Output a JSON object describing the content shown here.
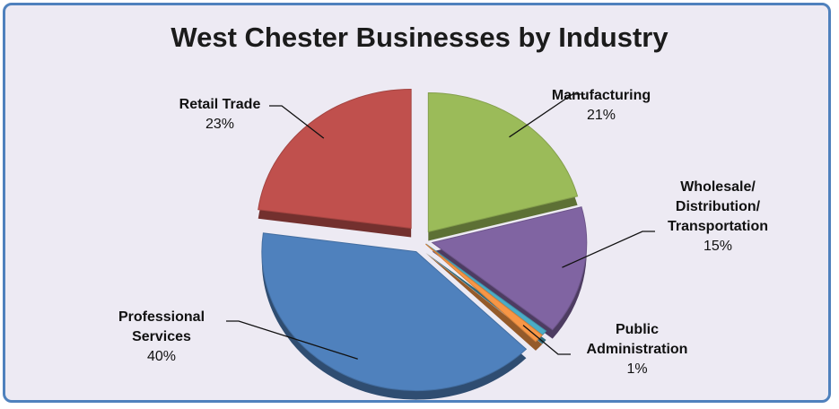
{
  "chart_data": {
    "type": "pie",
    "title": "West Chester Businesses by Industry",
    "slices": [
      {
        "label": "Manufacturing",
        "value": 21,
        "display": "21%",
        "color": "#9bbb59"
      },
      {
        "label": "Wholesale/\nDistribution/\nTransportation",
        "value": 15,
        "display": "15%",
        "color": "#8064a2"
      },
      {
        "label": "",
        "value": 0.6,
        "display": "",
        "color": "#4bacc6"
      },
      {
        "label": "Public\nAdministration",
        "value": 1,
        "display": "1%",
        "color": "#f79646"
      },
      {
        "label": "Professional\nServices",
        "value": 40,
        "display": "40%",
        "color": "#4f81bd"
      },
      {
        "label": "Retail Trade",
        "value": 23,
        "display": "23%",
        "color": "#c0504d"
      }
    ]
  }
}
